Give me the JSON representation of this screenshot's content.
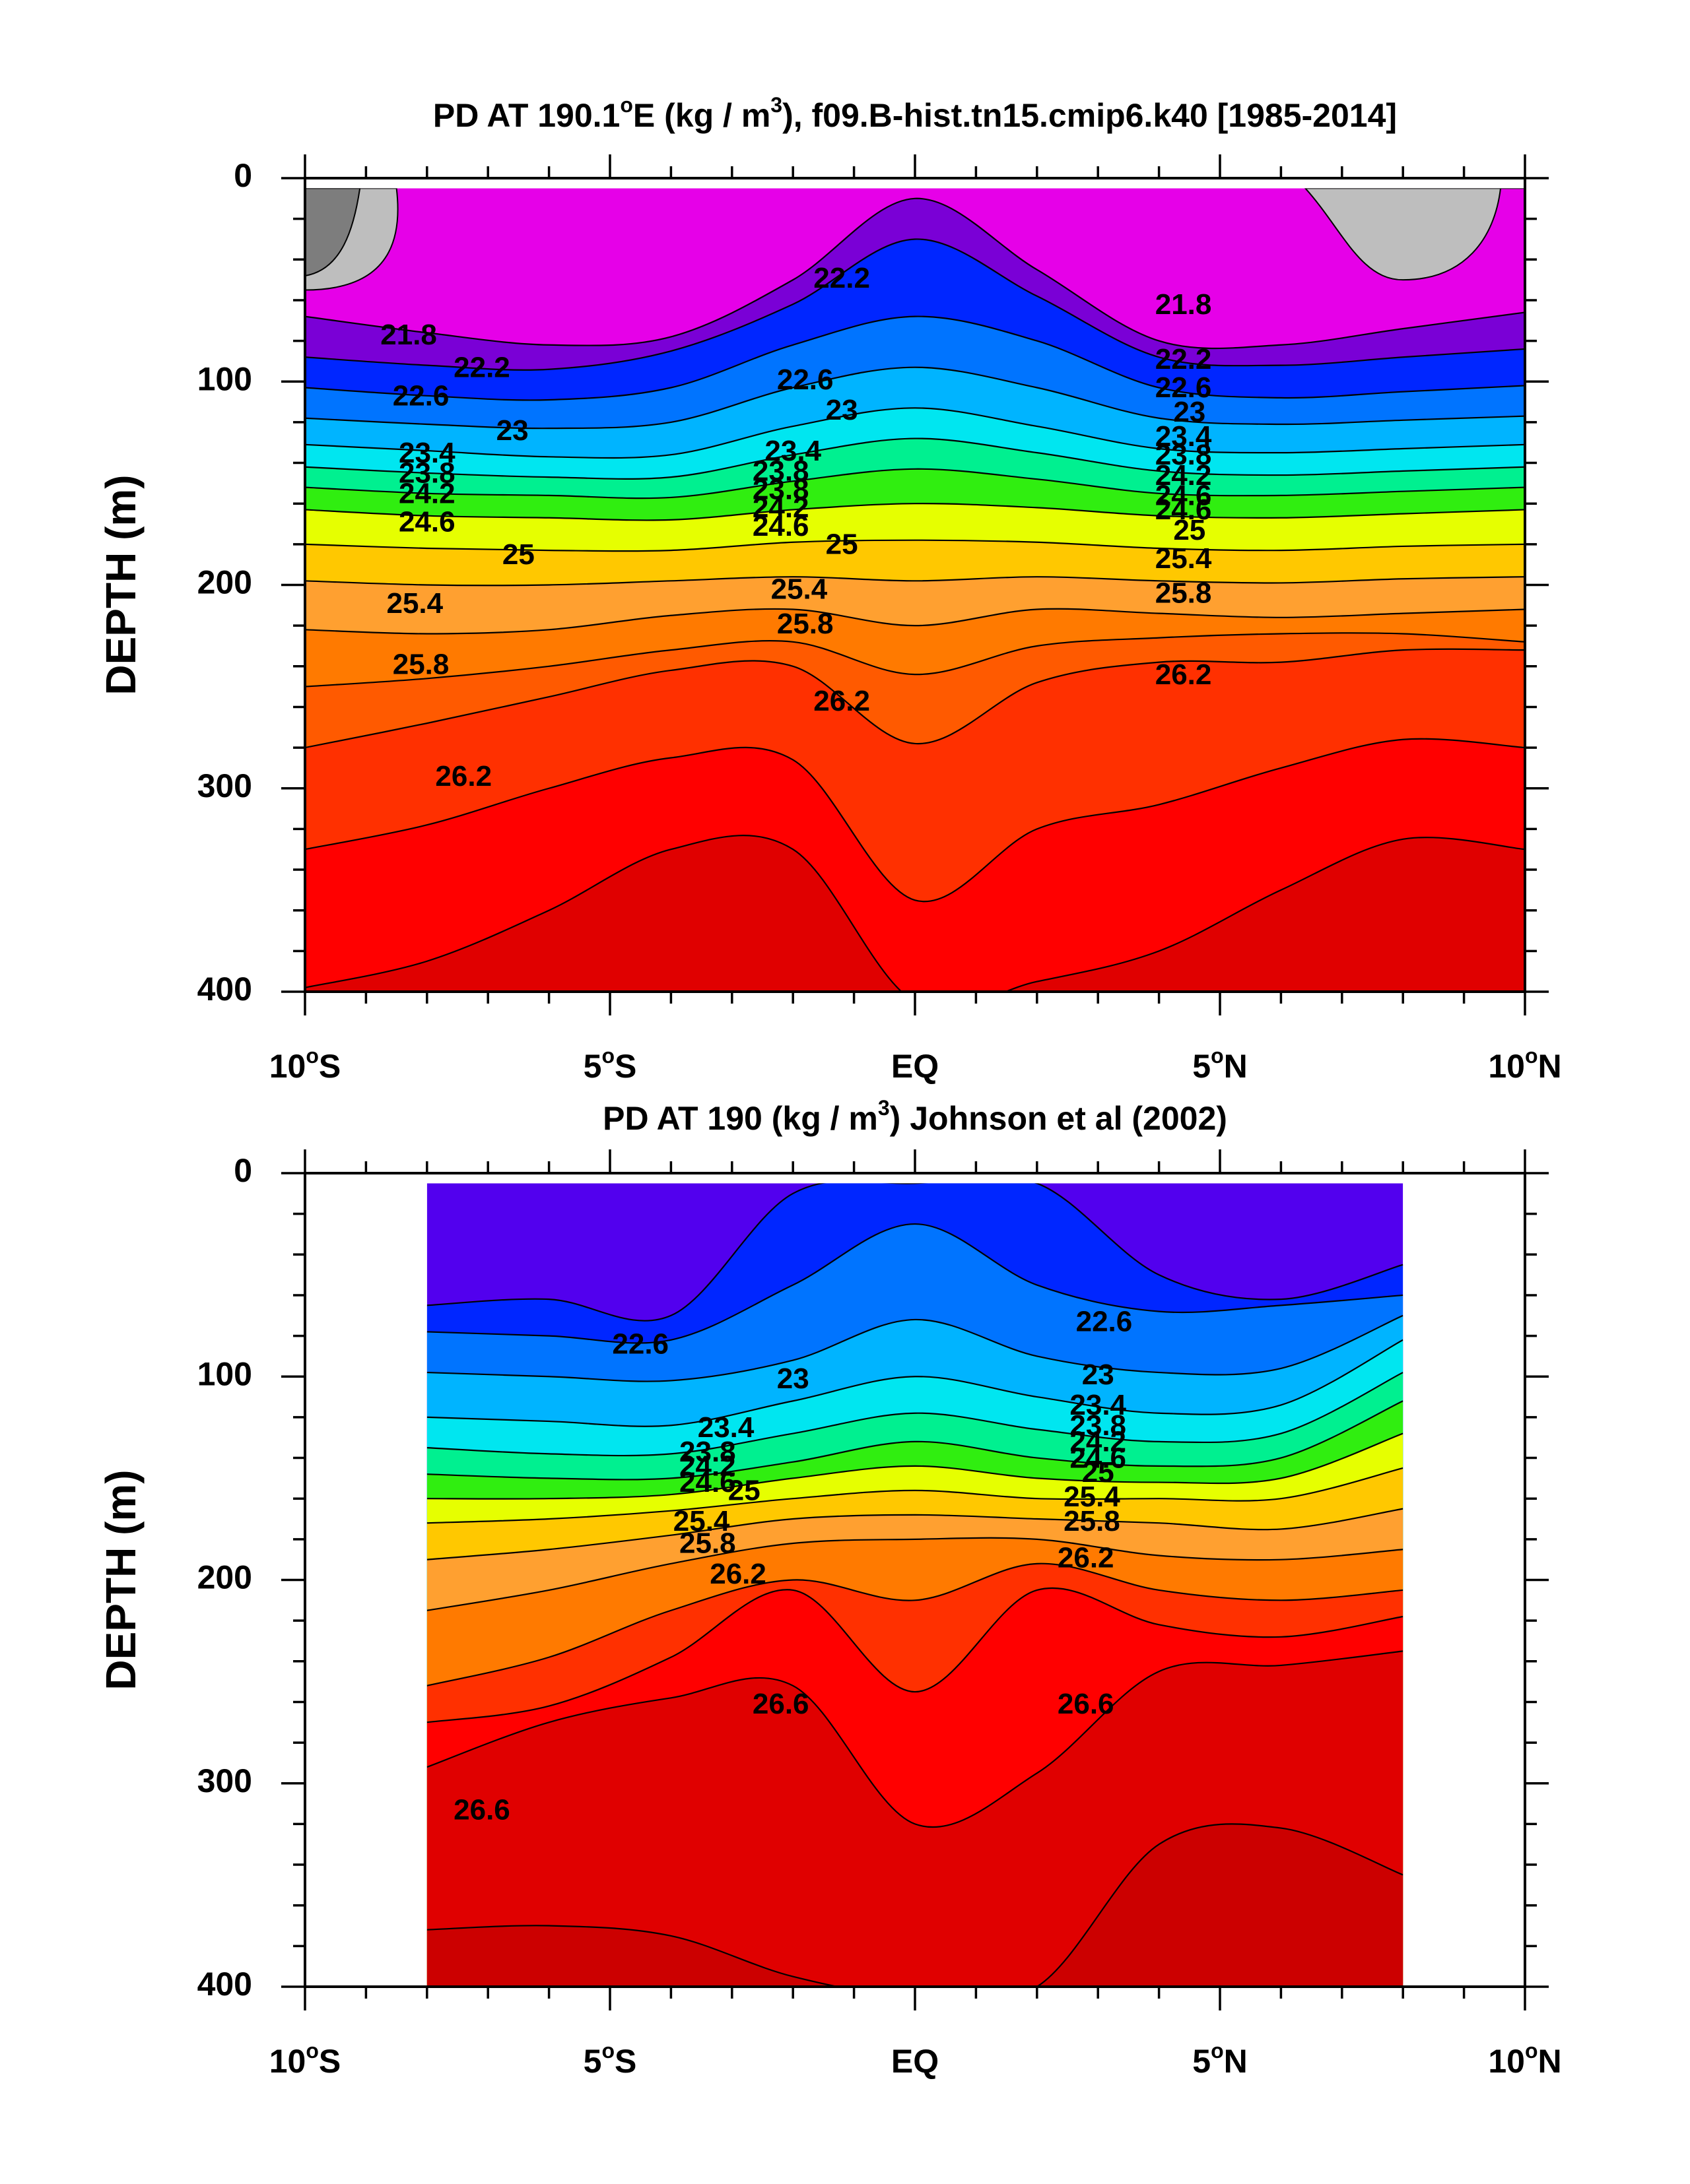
{
  "chart_data": [
    {
      "type": "heatmap",
      "title_prefix": "PD AT 190.1",
      "title_sup1": "o",
      "title_mid": "E (kg / m",
      "title_sup2": "3",
      "title_suffix": "), f09.B-hist.tn15.cmip6.k40 [1985-2014]",
      "ylabel": "DEPTH (m)",
      "xlim": [
        -10,
        10
      ],
      "ylim": [
        400,
        0
      ],
      "y_reversed": true,
      "x_ticks": [
        {
          "value": -10,
          "label": "10",
          "deg": "o",
          "hemi": "S"
        },
        {
          "value": -5,
          "label": "5",
          "deg": "o",
          "hemi": "S"
        },
        {
          "value": 0,
          "label": "EQ",
          "deg": "",
          "hemi": ""
        },
        {
          "value": 5,
          "label": "5",
          "deg": "o",
          "hemi": "N"
        },
        {
          "value": 10,
          "label": "10",
          "deg": "o",
          "hemi": "N"
        }
      ],
      "y_ticks": [
        {
          "value": 0,
          "label": "0"
        },
        {
          "value": 100,
          "label": "100"
        },
        {
          "value": 200,
          "label": "200"
        },
        {
          "value": 300,
          "label": "300"
        },
        {
          "value": 400,
          "label": "400"
        }
      ],
      "x_data_extent": [
        -10,
        10
      ],
      "depth_data_extent": [
        5,
        400
      ],
      "contour_interval": 0.2,
      "levels": [
        20.8,
        21.0,
        21.2,
        21.4,
        21.6,
        21.8,
        22.0,
        22.2,
        22.4,
        22.6,
        22.8,
        23.0,
        23.2,
        23.4,
        23.6,
        23.8,
        24.0,
        24.2,
        24.4,
        24.6,
        24.8,
        25.0,
        25.2,
        25.4,
        25.6,
        25.8,
        26.0,
        26.2,
        26.4,
        26.6,
        26.8
      ],
      "isopycnal_depth_profiles_x": [
        -10,
        -8,
        -6,
        -4,
        -2,
        0,
        2,
        4,
        6,
        8,
        10
      ],
      "isopycnal_depths": [
        {
          "sigma": 21.8,
          "depth": [
            68,
            76,
            82,
            78,
            50,
            10,
            45,
            80,
            82,
            74,
            66
          ]
        },
        {
          "sigma": 22.2,
          "depth": [
            88,
            92,
            94,
            85,
            62,
            30,
            58,
            88,
            92,
            88,
            84
          ]
        },
        {
          "sigma": 22.6,
          "depth": [
            103,
            107,
            109,
            103,
            82,
            68,
            80,
            103,
            108,
            105,
            102
          ]
        },
        {
          "sigma": 23.0,
          "depth": [
            118,
            121,
            123,
            120,
            103,
            93,
            103,
            118,
            121,
            119,
            117
          ]
        },
        {
          "sigma": 23.4,
          "depth": [
            131,
            134,
            137,
            136,
            122,
            113,
            122,
            133,
            135,
            133,
            131
          ]
        },
        {
          "sigma": 23.8,
          "depth": [
            142,
            145,
            147,
            147,
            136,
            128,
            135,
            144,
            146,
            144,
            142
          ]
        },
        {
          "sigma": 24.2,
          "depth": [
            152,
            155,
            156,
            157,
            149,
            143,
            148,
            155,
            156,
            154,
            152
          ]
        },
        {
          "sigma": 24.6,
          "depth": [
            163,
            166,
            167,
            168,
            163,
            160,
            162,
            166,
            167,
            165,
            163
          ]
        },
        {
          "sigma": 25.0,
          "depth": [
            180,
            182,
            183,
            183,
            179,
            178,
            179,
            182,
            183,
            181,
            180
          ]
        },
        {
          "sigma": 25.4,
          "depth": [
            198,
            200,
            200,
            198,
            196,
            198,
            196,
            198,
            199,
            197,
            196
          ]
        },
        {
          "sigma": 25.8,
          "depth": [
            222,
            224,
            222,
            215,
            212,
            220,
            212,
            214,
            216,
            214,
            212
          ]
        },
        {
          "sigma": 26.0,
          "depth": [
            250,
            246,
            240,
            232,
            228,
            244,
            230,
            226,
            224,
            224,
            228
          ]
        },
        {
          "sigma": 26.2,
          "depth": [
            280,
            268,
            255,
            242,
            240,
            278,
            248,
            238,
            238,
            232,
            232
          ]
        },
        {
          "sigma": 26.4,
          "depth": [
            330,
            318,
            300,
            285,
            286,
            355,
            320,
            308,
            290,
            276,
            280
          ]
        },
        {
          "sigma": 26.6,
          "depth": [
            398,
            385,
            360,
            330,
            330,
            405,
            395,
            380,
            350,
            325,
            330
          ]
        }
      ],
      "surface_minimum_sigma": 20.8,
      "surface_maximum_sigma": 22.2,
      "contour_labels": [
        {
          "text": "21.8",
          "x": -8.3,
          "depth": 78
        },
        {
          "text": "22.2",
          "x": -7.1,
          "depth": 94
        },
        {
          "text": "22.6",
          "x": -8.1,
          "depth": 108
        },
        {
          "text": "23",
          "x": -6.6,
          "depth": 125
        },
        {
          "text": "23.4",
          "x": -8.0,
          "depth": 136
        },
        {
          "text": "23.8",
          "x": -8.0,
          "depth": 146
        },
        {
          "text": "24.2",
          "x": -8.0,
          "depth": 156
        },
        {
          "text": "24.6",
          "x": -8.0,
          "depth": 170
        },
        {
          "text": "25",
          "x": -6.5,
          "depth": 186
        },
        {
          "text": "25.4",
          "x": -8.2,
          "depth": 210
        },
        {
          "text": "25.8",
          "x": -8.1,
          "depth": 240
        },
        {
          "text": "26.2",
          "x": -7.4,
          "depth": 295
        },
        {
          "text": "22.2",
          "x": -1.2,
          "depth": 50
        },
        {
          "text": "22.6",
          "x": -1.8,
          "depth": 100
        },
        {
          "text": "23",
          "x": -1.2,
          "depth": 115
        },
        {
          "text": "23.4",
          "x": -2.0,
          "depth": 135
        },
        {
          "text": "23.8",
          "x": -2.2,
          "depth": 145
        },
        {
          "text": "23.8",
          "x": -2.2,
          "depth": 154
        },
        {
          "text": "24.2",
          "x": -2.2,
          "depth": 163
        },
        {
          "text": "24.6",
          "x": -2.2,
          "depth": 172
        },
        {
          "text": "25",
          "x": -1.2,
          "depth": 181
        },
        {
          "text": "25.4",
          "x": -1.9,
          "depth": 203
        },
        {
          "text": "25.8",
          "x": -1.8,
          "depth": 220
        },
        {
          "text": "26.2",
          "x": -1.2,
          "depth": 258
        },
        {
          "text": "21.8",
          "x": 4.4,
          "depth": 63
        },
        {
          "text": "22.2",
          "x": 4.4,
          "depth": 90
        },
        {
          "text": "22.6",
          "x": 4.4,
          "depth": 104
        },
        {
          "text": "23",
          "x": 4.5,
          "depth": 116
        },
        {
          "text": "23.4",
          "x": 4.4,
          "depth": 128
        },
        {
          "text": "23.8",
          "x": 4.4,
          "depth": 137
        },
        {
          "text": "24.2",
          "x": 4.4,
          "depth": 147
        },
        {
          "text": "24.6",
          "x": 4.4,
          "depth": 157
        },
        {
          "text": "24.6",
          "x": 4.4,
          "depth": 164
        },
        {
          "text": "25",
          "x": 4.5,
          "depth": 174
        },
        {
          "text": "25.4",
          "x": 4.4,
          "depth": 188
        },
        {
          "text": "25.8",
          "x": 4.4,
          "depth": 205
        },
        {
          "text": "26.2",
          "x": 4.4,
          "depth": 245
        }
      ]
    },
    {
      "type": "heatmap",
      "title_prefix": "PD AT 190 (kg / m",
      "title_sup2": "3",
      "title_suffix": ") Johnson et al (2002)",
      "ylabel": "DEPTH (m)",
      "xlim": [
        -10,
        10
      ],
      "ylim": [
        400,
        0
      ],
      "y_reversed": true,
      "x_ticks": [
        {
          "value": -10,
          "label": "10",
          "deg": "o",
          "hemi": "S"
        },
        {
          "value": -5,
          "label": "5",
          "deg": "o",
          "hemi": "S"
        },
        {
          "value": 0,
          "label": "EQ",
          "deg": "",
          "hemi": ""
        },
        {
          "value": 5,
          "label": "5",
          "deg": "o",
          "hemi": "N"
        },
        {
          "value": 10,
          "label": "10",
          "deg": "o",
          "hemi": "N"
        }
      ],
      "y_ticks": [
        {
          "value": 0,
          "label": "0"
        },
        {
          "value": 100,
          "label": "100"
        },
        {
          "value": 200,
          "label": "200"
        },
        {
          "value": 300,
          "label": "300"
        },
        {
          "value": 400,
          "label": "400"
        }
      ],
      "x_data_extent": [
        -8,
        8
      ],
      "depth_data_extent": [
        5,
        400
      ],
      "contour_interval": 0.2,
      "levels": [
        21.8,
        22.0,
        22.2,
        22.4,
        22.6,
        22.8,
        23.0,
        23.2,
        23.4,
        23.6,
        23.8,
        24.0,
        24.2,
        24.4,
        24.6,
        24.8,
        25.0,
        25.2,
        25.4,
        25.6,
        25.8,
        26.0,
        26.2,
        26.4,
        26.6,
        26.8,
        27.0
      ],
      "isopycnal_depths_x": [
        -8,
        -6,
        -4,
        -2,
        0,
        2,
        4,
        6,
        8
      ],
      "isopycnal_depths": [
        {
          "sigma": 22.2,
          "depth": [
            65,
            62,
            70,
            10,
            5,
            5,
            50,
            62,
            45
          ]
        },
        {
          "sigma": 22.6,
          "depth": [
            78,
            80,
            82,
            55,
            25,
            55,
            68,
            65,
            60
          ]
        },
        {
          "sigma": 23.0,
          "depth": [
            98,
            100,
            102,
            92,
            72,
            90,
            98,
            96,
            70
          ]
        },
        {
          "sigma": 23.4,
          "depth": [
            120,
            122,
            124,
            112,
            100,
            110,
            118,
            114,
            82
          ]
        },
        {
          "sigma": 23.8,
          "depth": [
            135,
            138,
            138,
            128,
            118,
            126,
            132,
            128,
            98
          ]
        },
        {
          "sigma": 24.2,
          "depth": [
            148,
            150,
            150,
            142,
            132,
            140,
            144,
            140,
            112
          ]
        },
        {
          "sigma": 24.6,
          "depth": [
            160,
            160,
            158,
            150,
            144,
            150,
            152,
            150,
            128
          ]
        },
        {
          "sigma": 25.0,
          "depth": [
            172,
            170,
            166,
            160,
            156,
            160,
            160,
            160,
            145
          ]
        },
        {
          "sigma": 25.4,
          "depth": [
            190,
            185,
            178,
            170,
            168,
            170,
            172,
            175,
            165
          ]
        },
        {
          "sigma": 25.8,
          "depth": [
            215,
            205,
            192,
            182,
            180,
            180,
            188,
            190,
            185
          ]
        },
        {
          "sigma": 26.2,
          "depth": [
            252,
            238,
            215,
            200,
            210,
            192,
            205,
            210,
            205
          ]
        },
        {
          "sigma": 26.4,
          "depth": [
            270,
            262,
            238,
            205,
            255,
            205,
            222,
            228,
            218
          ]
        },
        {
          "sigma": 26.6,
          "depth": [
            292,
            270,
            258,
            252,
            320,
            295,
            245,
            242,
            235
          ]
        },
        {
          "sigma": 26.8,
          "depth": [
            372,
            370,
            375,
            395,
            405,
            400,
            330,
            322,
            345
          ]
        }
      ],
      "contour_labels": [
        {
          "text": "22.6",
          "x": -4.5,
          "depth": 85
        },
        {
          "text": "23",
          "x": -2.0,
          "depth": 102
        },
        {
          "text": "23.4",
          "x": -3.1,
          "depth": 126
        },
        {
          "text": "23.8",
          "x": -3.4,
          "depth": 138
        },
        {
          "text": "24.2",
          "x": -3.4,
          "depth": 145
        },
        {
          "text": "24.6",
          "x": -3.4,
          "depth": 153
        },
        {
          "text": "25",
          "x": -2.8,
          "depth": 157
        },
        {
          "text": "25.4",
          "x": -3.5,
          "depth": 172
        },
        {
          "text": "25.8",
          "x": -3.4,
          "depth": 183
        },
        {
          "text": "26.2",
          "x": -2.9,
          "depth": 198
        },
        {
          "text": "22.6",
          "x": 3.1,
          "depth": 74
        },
        {
          "text": "23",
          "x": 3.0,
          "depth": 100
        },
        {
          "text": "23.4",
          "x": 3.0,
          "depth": 115
        },
        {
          "text": "23.8",
          "x": 3.0,
          "depth": 125
        },
        {
          "text": "24.2",
          "x": 3.0,
          "depth": 133
        },
        {
          "text": "24.6",
          "x": 3.0,
          "depth": 141
        },
        {
          "text": "25",
          "x": 3.0,
          "depth": 148
        },
        {
          "text": "25.4",
          "x": 2.9,
          "depth": 160
        },
        {
          "text": "25.8",
          "x": 2.9,
          "depth": 172
        },
        {
          "text": "26.2",
          "x": 2.8,
          "depth": 190
        },
        {
          "text": "26.6",
          "x": -2.2,
          "depth": 262
        },
        {
          "text": "26.6",
          "x": 2.8,
          "depth": 262
        },
        {
          "text": "26.6",
          "x": -7.1,
          "depth": 314
        }
      ]
    }
  ],
  "colors": {
    "sigma_palette": [
      {
        "sigma": 20.8,
        "hex": "#7d7d7d"
      },
      {
        "sigma": 21.0,
        "hex": "#bebebe"
      },
      {
        "sigma": 21.2,
        "hex": "#ff00ff"
      },
      {
        "sigma": 21.4,
        "hex": "#e600e8"
      },
      {
        "sigma": 21.6,
        "hex": "#b800d0"
      },
      {
        "sigma": 21.8,
        "hex": "#7a00d6"
      },
      {
        "sigma": 22.0,
        "hex": "#5200ee"
      },
      {
        "sigma": 22.2,
        "hex": "#0026ff"
      },
      {
        "sigma": 22.4,
        "hex": "#0050ff"
      },
      {
        "sigma": 22.6,
        "hex": "#0074ff"
      },
      {
        "sigma": 22.8,
        "hex": "#0096ff"
      },
      {
        "sigma": 23.0,
        "hex": "#00b4ff"
      },
      {
        "sigma": 23.2,
        "hex": "#00d2ff"
      },
      {
        "sigma": 23.4,
        "hex": "#00e6f0"
      },
      {
        "sigma": 23.6,
        "hex": "#00f0c8"
      },
      {
        "sigma": 23.8,
        "hex": "#00f090"
      },
      {
        "sigma": 24.0,
        "hex": "#00e640"
      },
      {
        "sigma": 24.2,
        "hex": "#30ee10"
      },
      {
        "sigma": 24.4,
        "hex": "#90f800"
      },
      {
        "sigma": 24.6,
        "hex": "#e6ff00"
      },
      {
        "sigma": 24.8,
        "hex": "#ffe800"
      },
      {
        "sigma": 25.0,
        "hex": "#ffc800"
      },
      {
        "sigma": 25.2,
        "hex": "#ffb42e"
      },
      {
        "sigma": 25.4,
        "hex": "#ffa030"
      },
      {
        "sigma": 25.6,
        "hex": "#ff9020"
      },
      {
        "sigma": 25.8,
        "hex": "#ff7a00"
      },
      {
        "sigma": 26.0,
        "hex": "#ff5a00"
      },
      {
        "sigma": 26.2,
        "hex": "#ff3000"
      },
      {
        "sigma": 26.4,
        "hex": "#ff0000"
      },
      {
        "sigma": 26.6,
        "hex": "#e00000"
      },
      {
        "sigma": 26.8,
        "hex": "#cc0000"
      }
    ],
    "axis": "#000000",
    "contour_line": "#000000",
    "background": "#ffffff"
  }
}
